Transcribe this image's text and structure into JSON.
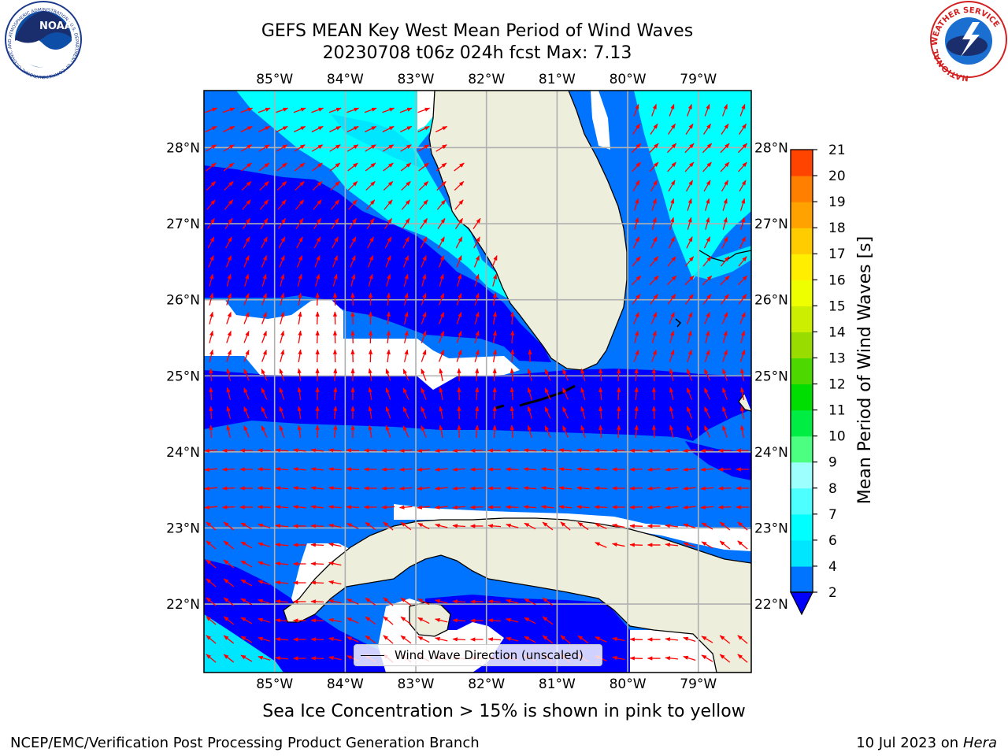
{
  "title_line1": "GEFS MEAN Key West Mean Period of Wind Waves",
  "title_line2": "20230708 t06z 024h fcst   Max: 7.13",
  "subtitle": "Sea Ice Concentration > 15% is shown in pink to yellow",
  "credit_left": "NCEP/EMC/Verification Post Processing Product Generation Branch",
  "credit_date": "10 Jul 2023 on ",
  "credit_host": "Hera",
  "legend_label": "Wind Wave Direction (unscaled)",
  "colorbar_label": "Mean Period of Wind Waves [s]",
  "logos": {
    "noaa_text": "NOAA",
    "noaa_ring": "NATIONAL OCEANIC AND ATMOSPHERIC ADMINISTRATION · U.S. DEPARTMENT OF COMMERCE",
    "nws_ring": "NATIONAL WEATHER SERVICE"
  },
  "map": {
    "lon_range": [
      -86.0,
      -78.25
    ],
    "lat_range": [
      21.1,
      28.75
    ],
    "lon_ticks": [
      "85°W",
      "84°W",
      "83°W",
      "82°W",
      "81°W",
      "80°W",
      "79°W"
    ],
    "lat_ticks": [
      "28°N",
      "27°N",
      "26°N",
      "25°N",
      "24°N",
      "23°N",
      "22°N"
    ],
    "gridlines": true,
    "land_color": "#eeeedc",
    "arrow_color": "#ff0000"
  },
  "colorbar": {
    "levels": [
      2,
      4,
      6,
      7,
      8,
      9,
      10,
      11,
      12,
      13,
      14,
      15,
      16,
      17,
      18,
      19,
      20,
      21
    ],
    "tick_labels": [
      "2",
      "4",
      "6",
      "7",
      "8",
      "9",
      "10",
      "11",
      "12",
      "13",
      "14",
      "15",
      "16",
      "17",
      "18",
      "19",
      "20",
      "21"
    ],
    "colors": [
      "#0073ff",
      "#00e6ff",
      "#00ffff",
      "#4dffff",
      "#9effff",
      "#4dff80",
      "#00ee44",
      "#00dd00",
      "#4dd900",
      "#99dd00",
      "#ccee00",
      "#eeff00",
      "#ffee00",
      "#ffcc00",
      "#ffa200",
      "#ff8000",
      "#ff4400",
      "#ff0000"
    ],
    "extend": "min",
    "under_color": "#0000ff"
  }
}
